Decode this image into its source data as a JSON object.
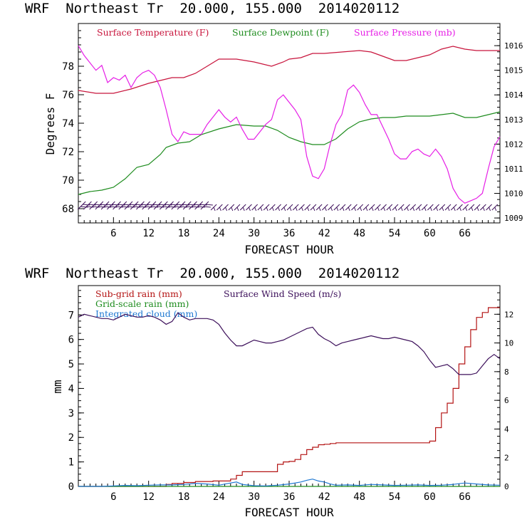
{
  "chart_data": [
    {
      "type": "line",
      "title": "WRF  Northeast Tr  20.000, 155.000  2014020112",
      "xlabel": "FORECAST HOUR",
      "ylabel": "Degrees F",
      "xlim": [
        0,
        72
      ],
      "ylim": [
        67,
        81
      ],
      "y2lim": [
        1008.8,
        1016.9
      ],
      "x_ticks": [
        "6",
        "12",
        "18",
        "24",
        "30",
        "36",
        "42",
        "48",
        "54",
        "60",
        "66"
      ],
      "x_tick_values": [
        6,
        12,
        18,
        24,
        30,
        36,
        42,
        48,
        54,
        60,
        66
      ],
      "y_ticks": [
        "68",
        "70",
        "72",
        "74",
        "76",
        "78"
      ],
      "y_tick_values": [
        68,
        70,
        72,
        74,
        76,
        78
      ],
      "y2_ticks": [
        "1009",
        "1010",
        "1011",
        "1012",
        "1013",
        "1014",
        "1015",
        "1016"
      ],
      "y2_tick_values": [
        1009,
        1010,
        1011,
        1012,
        1013,
        1014,
        1015,
        1016
      ],
      "legend_placement": "top",
      "series": [
        {
          "name": "Surface Temperature (F)",
          "color": "#c8143c",
          "axis": "left",
          "x": [
            0,
            3,
            6,
            9,
            12,
            14,
            16,
            18,
            20,
            22,
            24,
            27,
            30,
            33,
            35,
            36,
            38,
            40,
            42,
            45,
            48,
            50,
            52,
            54,
            56,
            58,
            60,
            62,
            64,
            66,
            68,
            70,
            72
          ],
          "y": [
            76.3,
            76.1,
            76.1,
            76.4,
            76.8,
            77.0,
            77.2,
            77.2,
            77.5,
            78.0,
            78.5,
            78.5,
            78.3,
            78.0,
            78.3,
            78.5,
            78.6,
            78.9,
            78.9,
            79.0,
            79.1,
            79.0,
            78.7,
            78.4,
            78.4,
            78.6,
            78.8,
            79.2,
            79.4,
            79.2,
            79.1,
            79.1,
            79.1
          ]
        },
        {
          "name": "Surface Dewpoint (F)",
          "color": "#1e8c1e",
          "axis": "left",
          "x": [
            0,
            2,
            4,
            6,
            8,
            10,
            12,
            14,
            15,
            17,
            19,
            21,
            24,
            27,
            30,
            32,
            34,
            36,
            38,
            40,
            42,
            44,
            46,
            48,
            50,
            52,
            54,
            56,
            58,
            60,
            62,
            64,
            66,
            68,
            70,
            72
          ],
          "y": [
            69.0,
            69.2,
            69.3,
            69.5,
            70.1,
            70.9,
            71.1,
            71.8,
            72.3,
            72.6,
            72.7,
            73.2,
            73.6,
            73.9,
            73.8,
            73.8,
            73.5,
            73.0,
            72.7,
            72.5,
            72.5,
            72.9,
            73.6,
            74.1,
            74.3,
            74.4,
            74.4,
            74.5,
            74.5,
            74.5,
            74.6,
            74.7,
            74.4,
            74.4,
            74.6,
            74.8
          ]
        },
        {
          "name": "Surface Pressure (mb)",
          "color": "#e61ee6",
          "axis": "right",
          "x": [
            0,
            1,
            2,
            3,
            4,
            5,
            6,
            7,
            8,
            9,
            10,
            11,
            12,
            13,
            14,
            15,
            16,
            17,
            18,
            19,
            20,
            21,
            22,
            23,
            24,
            25,
            26,
            27,
            28,
            29,
            30,
            31,
            32,
            33,
            34,
            35,
            36,
            37,
            38,
            39,
            40,
            41,
            42,
            43,
            44,
            45,
            46,
            47,
            48,
            49,
            50,
            51,
            52,
            53,
            54,
            55,
            56,
            57,
            58,
            59,
            60,
            61,
            62,
            63,
            64,
            65,
            66,
            67,
            68,
            69,
            70,
            71,
            72
          ],
          "y": [
            1016.0,
            1015.6,
            1015.3,
            1015.0,
            1015.2,
            1014.5,
            1014.7,
            1014.6,
            1014.8,
            1014.3,
            1014.7,
            1014.9,
            1015.0,
            1014.8,
            1014.3,
            1013.4,
            1012.4,
            1012.1,
            1012.5,
            1012.4,
            1012.4,
            1012.4,
            1012.8,
            1013.1,
            1013.4,
            1013.1,
            1012.9,
            1013.1,
            1012.6,
            1012.2,
            1012.2,
            1012.5,
            1012.8,
            1013.0,
            1013.8,
            1014.0,
            1013.7,
            1013.4,
            1013.0,
            1011.5,
            1010.7,
            1010.6,
            1011.0,
            1012.0,
            1012.8,
            1013.2,
            1014.2,
            1014.4,
            1014.1,
            1013.6,
            1013.2,
            1013.2,
            1012.7,
            1012.2,
            1011.6,
            1011.4,
            1011.4,
            1011.7,
            1011.8,
            1011.6,
            1011.5,
            1011.8,
            1011.5,
            1011.0,
            1010.2,
            1009.8,
            1009.6,
            1009.7,
            1009.8,
            1010.0,
            1011.0,
            1011.9,
            1012.3
          ]
        },
        {
          "name": "",
          "type": "wind-barbs",
          "color": "#3c0f5a",
          "axis": "left",
          "x": [
            1,
            2,
            3,
            4,
            5,
            6,
            7,
            8,
            9,
            10,
            11,
            12,
            13,
            14,
            15,
            16,
            17,
            18,
            19,
            20,
            21,
            22,
            23,
            24,
            25,
            26,
            27,
            28,
            29,
            30,
            31,
            32,
            33,
            34,
            35,
            36,
            37,
            38,
            39,
            40,
            41,
            42,
            43,
            44,
            45,
            46,
            47,
            48,
            49,
            50,
            51,
            52,
            53,
            54,
            55,
            56,
            57,
            58,
            59,
            60,
            61,
            62,
            63,
            64,
            65,
            66,
            67,
            68,
            69,
            70,
            71
          ],
          "y": [
            68,
            68,
            68,
            68,
            68,
            68,
            68,
            68,
            68,
            68,
            68,
            68,
            68,
            68,
            68,
            68,
            68,
            68,
            68,
            68,
            68,
            68,
            68,
            68,
            68,
            68,
            68,
            68,
            68,
            68,
            68,
            68,
            68,
            68,
            68,
            68,
            68,
            68,
            68,
            68,
            68,
            68,
            68,
            68,
            68,
            68,
            68,
            68,
            68,
            68,
            68,
            68,
            68,
            68,
            68,
            68,
            68,
            68,
            68,
            68,
            68,
            68,
            68,
            68,
            68,
            68,
            68,
            68,
            68,
            68,
            68
          ]
        }
      ]
    },
    {
      "type": "line",
      "title": "WRF  Northeast Tr  20.000, 155.000  2014020112",
      "xlabel": "FORECAST HOUR",
      "ylabel": "mm",
      "xlim": [
        0,
        72
      ],
      "ylim": [
        0,
        8.2
      ],
      "y2lim": [
        0,
        14
      ],
      "x_ticks": [
        "6",
        "12",
        "18",
        "24",
        "30",
        "36",
        "42",
        "48",
        "54",
        "60",
        "66"
      ],
      "x_tick_values": [
        6,
        12,
        18,
        24,
        30,
        36,
        42,
        48,
        54,
        60,
        66
      ],
      "y_ticks": [
        "0",
        "1",
        "2",
        "3",
        "4",
        "5",
        "6",
        "7"
      ],
      "y_tick_values": [
        0,
        1,
        2,
        3,
        4,
        5,
        6,
        7
      ],
      "y2_ticks": [
        "0",
        "2",
        "4",
        "6",
        "8",
        "10",
        "12"
      ],
      "y2_tick_values": [
        0,
        2,
        4,
        6,
        8,
        10,
        12
      ],
      "legend_placement": "top-left",
      "series": [
        {
          "name": "Sub-grid rain (mm)",
          "color": "#b41414",
          "axis": "left",
          "step": true,
          "x": [
            0,
            3,
            6,
            9,
            12,
            15,
            16,
            18,
            20,
            23,
            26,
            27,
            28,
            29,
            30,
            31,
            32,
            34,
            35,
            36,
            37,
            38,
            39,
            40,
            41,
            42,
            43,
            44,
            48,
            52,
            56,
            60,
            61,
            62,
            63,
            64,
            65,
            66,
            67,
            68,
            69,
            70,
            71,
            72
          ],
          "y": [
            0,
            0,
            0,
            0,
            0,
            0.08,
            0.12,
            0.16,
            0.2,
            0.22,
            0.3,
            0.45,
            0.6,
            0.6,
            0.6,
            0.6,
            0.6,
            0.9,
            1.0,
            1.02,
            1.1,
            1.3,
            1.5,
            1.6,
            1.7,
            1.72,
            1.75,
            1.78,
            1.78,
            1.78,
            1.78,
            1.85,
            2.4,
            3.0,
            3.4,
            4.0,
            5.0,
            5.7,
            6.4,
            6.9,
            7.1,
            7.3,
            7.3,
            7.3
          ]
        },
        {
          "name": "Grid-scale rain (mm)",
          "color": "#1e8c1e",
          "axis": "left",
          "x": [
            0,
            72
          ],
          "y": [
            0,
            0
          ]
        },
        {
          "name": "Integrated cloud (mm)",
          "color": "#1e78d2",
          "axis": "left",
          "x": [
            0,
            2,
            4,
            6,
            8,
            10,
            12,
            14,
            16,
            18,
            20,
            22,
            24,
            26,
            27,
            28,
            30,
            32,
            34,
            36,
            38,
            39,
            40,
            41,
            42,
            43,
            44,
            46,
            48,
            50,
            52,
            54,
            56,
            58,
            60,
            62,
            64,
            66,
            68,
            70,
            72
          ],
          "y": [
            0,
            0,
            0,
            0.02,
            0.04,
            0.03,
            0.05,
            0.06,
            0.06,
            0.08,
            0.12,
            0.1,
            0.05,
            0.14,
            0.18,
            0.08,
            0.03,
            0.02,
            0.05,
            0.1,
            0.18,
            0.25,
            0.3,
            0.22,
            0.18,
            0.1,
            0.05,
            0.06,
            0.04,
            0.08,
            0.06,
            0.04,
            0.05,
            0.06,
            0.04,
            0.05,
            0.08,
            0.14,
            0.1,
            0.06,
            0.05
          ]
        },
        {
          "name": "Surface Wind Speed (m/s)",
          "color": "#3c0f5a",
          "axis": "right",
          "x": [
            0,
            1,
            2,
            3,
            4,
            5,
            6,
            7,
            8,
            9,
            10,
            11,
            12,
            13,
            14,
            15,
            16,
            17,
            18,
            19,
            20,
            21,
            22,
            23,
            24,
            25,
            26,
            27,
            28,
            29,
            30,
            31,
            32,
            33,
            34,
            35,
            36,
            37,
            38,
            39,
            40,
            41,
            42,
            43,
            44,
            45,
            46,
            47,
            48,
            49,
            50,
            51,
            52,
            53,
            54,
            55,
            56,
            57,
            58,
            59,
            60,
            61,
            62,
            63,
            64,
            65,
            66,
            67,
            68,
            69,
            70,
            71,
            72
          ],
          "y": [
            11.8,
            12.0,
            11.9,
            11.8,
            11.7,
            11.7,
            11.6,
            11.8,
            12.0,
            11.9,
            11.8,
            11.8,
            11.9,
            11.8,
            11.6,
            11.3,
            11.5,
            12.1,
            11.8,
            11.6,
            11.7,
            11.7,
            11.7,
            11.6,
            11.3,
            10.7,
            10.2,
            9.8,
            9.8,
            10.0,
            10.2,
            10.1,
            10.0,
            10.0,
            10.1,
            10.2,
            10.4,
            10.6,
            10.8,
            11.0,
            11.1,
            10.6,
            10.3,
            10.1,
            9.8,
            10.0,
            10.1,
            10.2,
            10.3,
            10.4,
            10.5,
            10.4,
            10.3,
            10.3,
            10.4,
            10.3,
            10.2,
            10.1,
            9.8,
            9.4,
            8.8,
            8.3,
            8.4,
            8.5,
            8.2,
            7.8,
            7.8,
            7.8,
            7.9,
            8.4,
            8.9,
            9.2,
            8.9
          ]
        }
      ]
    }
  ]
}
